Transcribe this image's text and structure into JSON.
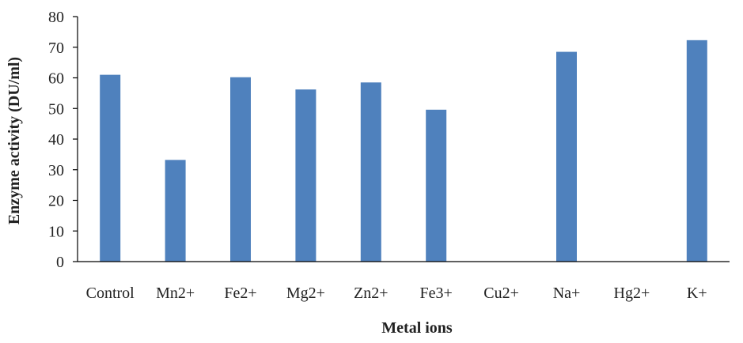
{
  "chart_data": {
    "type": "bar",
    "categories": [
      "Control",
      "Mn2+",
      "Fe2+",
      "Mg2+",
      "Zn2+",
      "Fe3+",
      "Cu2+",
      "Na+",
      "Hg2+",
      "K+"
    ],
    "series": [
      {
        "values": [
          61.0,
          33.2,
          60.2,
          56.2,
          58.5,
          49.6,
          0,
          68.5,
          0,
          72.3
        ]
      }
    ],
    "xlabel": "Metal ions",
    "ylabel": "Enzyme activity (DU/ml)",
    "ylim": [
      0,
      80
    ],
    "yticks": [
      0,
      10,
      20,
      30,
      40,
      50,
      60,
      70,
      80
    ],
    "grid": false,
    "legend": "none",
    "bar_color": "#4f81bd",
    "axis_color": "#000000"
  }
}
